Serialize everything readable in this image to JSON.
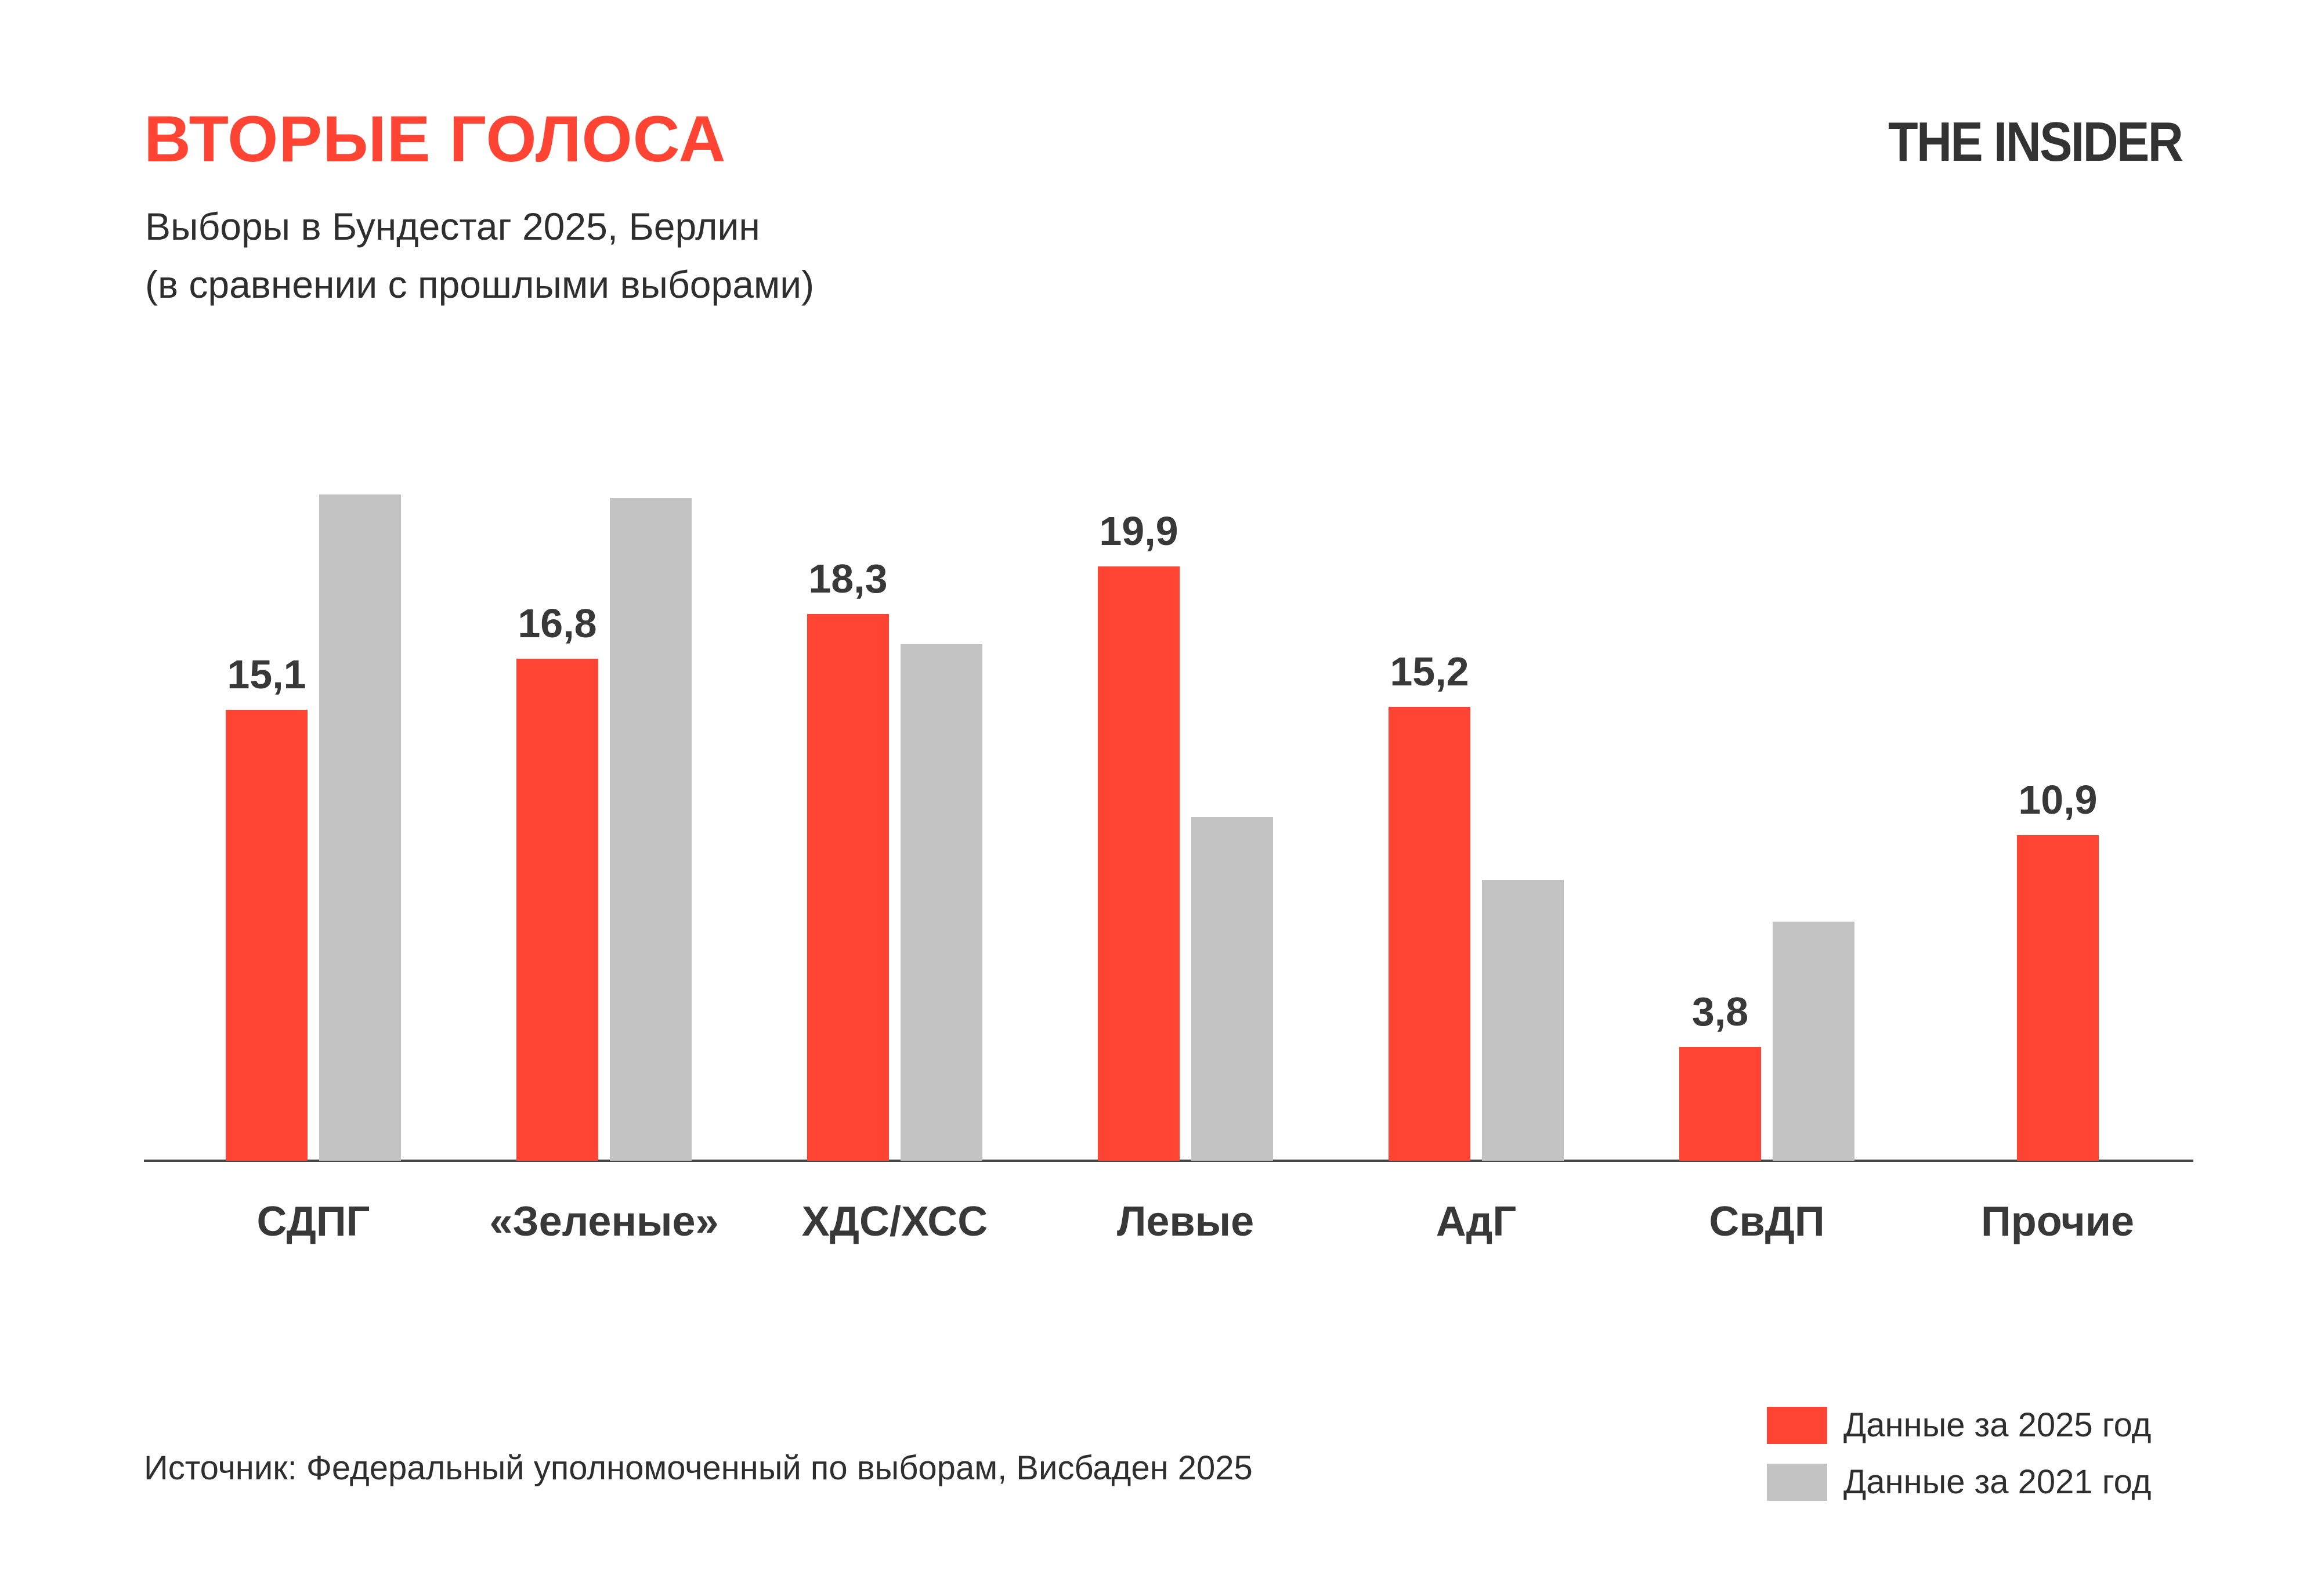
{
  "header": {
    "title": "ВТОРЫЕ ГОЛОСА",
    "subtitle_line1": "Выборы в Бундестаг 2025, Берлин",
    "subtitle_line2": "(в сравнении с прошлыми выборами)",
    "logo": "THE INSIDER"
  },
  "colors": {
    "accent_red": "#FF4433",
    "gray_bar": "#C3C3C3",
    "dark_text": "#383838",
    "subtitle_text": "#2E2E2E",
    "axis_line": "#464646",
    "logo_text": "#333333",
    "background": "#FFFFFF"
  },
  "chart_data": {
    "type": "bar",
    "categories": [
      "СДПГ",
      "«Зеленые»",
      "ХДС/ХСС",
      "Левые",
      "АдГ",
      "СвДП",
      "Прочие"
    ],
    "series": [
      {
        "name": "Данные за 2025 год",
        "color": "#FF4433",
        "values": [
          15.1,
          16.8,
          18.3,
          19.9,
          15.2,
          3.8,
          10.9
        ],
        "value_labels": [
          "15,1",
          "16,8",
          "18,3",
          "19,9",
          "15,2",
          "3,8",
          "10,9"
        ]
      },
      {
        "name": "Данные за 2021 год",
        "color": "#C3C3C3",
        "values": [
          22.3,
          22.2,
          17.3,
          11.5,
          9.4,
          8.0,
          null
        ],
        "value_labels": [
          null,
          null,
          null,
          null,
          null,
          null,
          null
        ]
      }
    ],
    "title": "ВТОРЫЕ ГОЛОСА",
    "subtitle": "Выборы в Бундестаг 2025, Берлин (в сравнении с прошлыми выборами)",
    "xlabel": "",
    "ylabel": "",
    "ylim": [
      0,
      24
    ],
    "grid": false,
    "y_axis_shown": false,
    "legend_position": "bottom-right",
    "value_labels_note": "labels shown only for 2025 series, decimal comma format"
  },
  "legend": {
    "items": [
      {
        "label": "Данные за 2025 год",
        "color": "#FF4433"
      },
      {
        "label": "Данные за 2021 год",
        "color": "#C3C3C3"
      }
    ]
  },
  "footer": {
    "source": "Источник: Федеральный уполномоченный по выборам, Висбаден 2025"
  }
}
